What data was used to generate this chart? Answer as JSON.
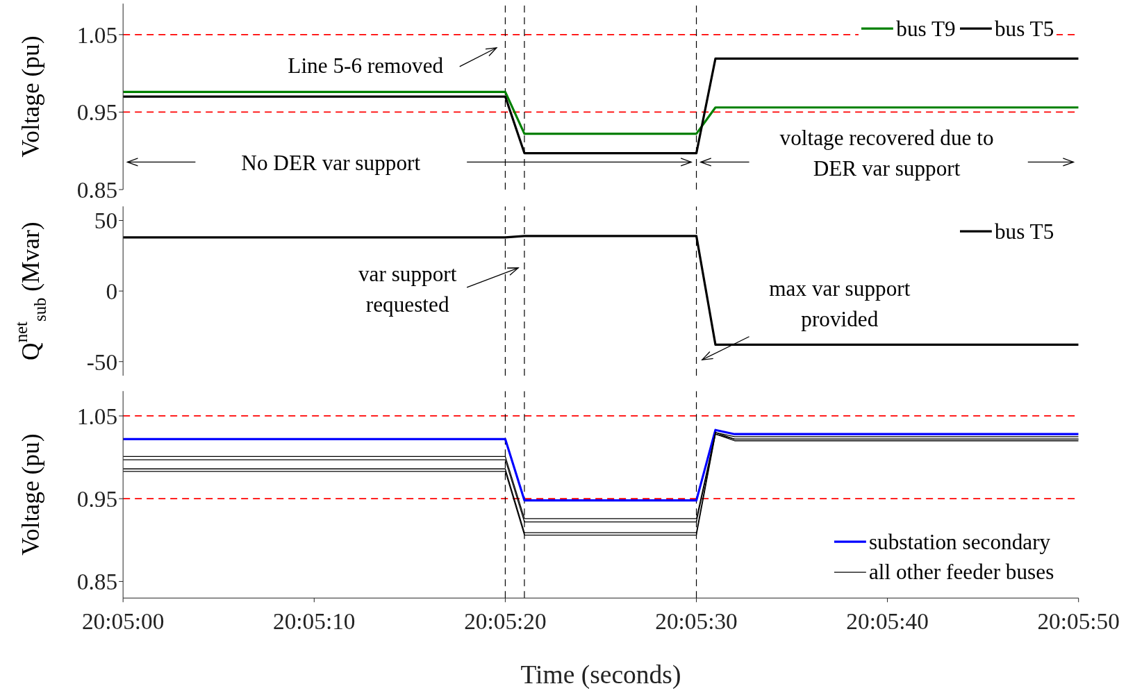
{
  "chart_data": [
    {
      "type": "line",
      "ylabel": "Voltage (pu)",
      "xlim": [
        20.083333,
        20.097222
      ],
      "xticks": [
        {
          "value": 20.083333,
          "label": null
        },
        {
          "value": 20.086111,
          "label": null
        },
        {
          "value": 20.088889,
          "label": null
        },
        {
          "value": 20.091667,
          "label": null
        },
        {
          "value": 20.094444,
          "label": null
        },
        {
          "value": 20.097222,
          "label": null
        }
      ],
      "ylim": [
        0.85,
        1.09
      ],
      "yticks": [
        0.85,
        0.95,
        1.05
      ],
      "tick_labels": "y",
      "grid": false,
      "legend": "top right",
      "marker": "none",
      "line_style": "solid",
      "series": [
        {
          "name": "bus T9",
          "color": "#008000",
          "x": [
            20.083333,
            20.088889,
            20.089167,
            20.091667,
            20.091944,
            20.097222
          ],
          "values": [
            0.976,
            0.976,
            0.922,
            0.922,
            0.956,
            0.956
          ]
        },
        {
          "name": "bus T5",
          "color": "#000000",
          "x": [
            20.083333,
            20.088889,
            20.089167,
            20.091667,
            20.091944,
            20.097222
          ],
          "values": [
            0.97,
            0.97,
            0.897,
            0.897,
            1.019,
            1.019
          ]
        }
      ],
      "ref_lines": [
        {
          "axis": "y",
          "value": 1.05,
          "color": "#ff0000",
          "line_style": "dashed"
        },
        {
          "axis": "y",
          "value": 0.95,
          "color": "#ff0000",
          "line_style": "dashed"
        },
        {
          "axis": "x",
          "value": 20.088889,
          "color": "#000000",
          "line_style": "dashed"
        },
        {
          "axis": "x",
          "value": 20.089167,
          "color": "#000000",
          "line_style": "dashed"
        },
        {
          "axis": "x",
          "value": 20.091667,
          "color": "#000000",
          "line_style": "dashed"
        }
      ],
      "annotations": [
        "Line 5-6 removed",
        "No DER var support",
        "voltage recovered due to DER var support"
      ]
    },
    {
      "type": "line",
      "ylabel": "Q$^{net}$$_{sub}$ (Mvar)",
      "xlim": [
        20.083333,
        20.097222
      ],
      "xticks": [
        {
          "value": 20.083333,
          "label": null
        },
        {
          "value": 20.086111,
          "label": null
        },
        {
          "value": 20.088889,
          "label": null
        },
        {
          "value": 20.091667,
          "label": null
        },
        {
          "value": 20.094444,
          "label": null
        },
        {
          "value": 20.097222,
          "label": null
        }
      ],
      "ylim": [
        -60,
        60
      ],
      "yticks": [
        -50,
        0,
        50
      ],
      "tick_labels": "y",
      "grid": false,
      "legend": "top right",
      "marker": "none",
      "line_style": "solid",
      "series": [
        {
          "name": "bus T5",
          "color": "#000000",
          "x": [
            20.083333,
            20.088889,
            20.089167,
            20.091667,
            20.091944,
            20.097222
          ],
          "values": [
            38,
            38,
            39,
            39,
            -38,
            -38
          ]
        }
      ],
      "ref_lines": [
        {
          "axis": "x",
          "value": 20.088889,
          "color": "#000000",
          "line_style": "dashed"
        },
        {
          "axis": "x",
          "value": 20.089167,
          "color": "#000000",
          "line_style": "dashed"
        },
        {
          "axis": "x",
          "value": 20.091667,
          "color": "#000000",
          "line_style": "dashed"
        }
      ],
      "annotations": [
        "var support requested",
        "max var support provided"
      ]
    },
    {
      "type": "line",
      "ylabel": "Voltage (pu)",
      "xlabel": "Time (seconds)",
      "xlim": [
        20.083333,
        20.097222
      ],
      "xticks": [
        {
          "value": 20.083333,
          "label": "20:05:00"
        },
        {
          "value": 20.086111,
          "label": "20:05:10"
        },
        {
          "value": 20.088889,
          "label": "20:05:20"
        },
        {
          "value": 20.091667,
          "label": "20:05:30"
        },
        {
          "value": 20.094444,
          "label": "20:05:40"
        },
        {
          "value": 20.097222,
          "label": "20:05:50"
        }
      ],
      "ylim": [
        0.83,
        1.08
      ],
      "yticks": [
        0.85,
        0.95,
        1.05
      ],
      "grid": false,
      "legend": "bottom right",
      "marker": "none",
      "line_style": "solid",
      "series": [
        {
          "name": "substation secondary",
          "color": "#0000ff",
          "x": [
            20.083333,
            20.088889,
            20.089167,
            20.091667,
            20.091944,
            20.092222,
            20.097222
          ],
          "values": [
            1.022,
            1.022,
            0.948,
            0.948,
            1.033,
            1.028,
            1.028
          ]
        },
        {
          "name": "all other feeder buses",
          "color": "#000000",
          "x": [
            20.083333,
            20.088889,
            20.089167,
            20.091667,
            20.091944,
            20.092222,
            20.097222
          ],
          "values": [
            1.001,
            1.001,
            0.926,
            0.926,
            1.03,
            1.025,
            1.025
          ]
        },
        {
          "color": "#000000",
          "x": [
            20.083333,
            20.088889,
            20.089167,
            20.091667,
            20.091944,
            20.092222,
            20.097222
          ],
          "values": [
            0.997,
            0.997,
            0.922,
            0.922,
            1.028,
            1.022,
            1.022
          ]
        },
        {
          "color": "#000000",
          "x": [
            20.083333,
            20.088889,
            20.089167,
            20.091667,
            20.091944,
            20.092222,
            20.097222
          ],
          "values": [
            0.986,
            0.986,
            0.909,
            0.909,
            1.03,
            1.022,
            1.022
          ]
        },
        {
          "color": "#000000",
          "x": [
            20.083333,
            20.088889,
            20.089167,
            20.091667,
            20.091944,
            20.092222,
            20.097222
          ],
          "values": [
            0.983,
            0.983,
            0.906,
            0.906,
            1.028,
            1.02,
            1.02
          ]
        }
      ],
      "ref_lines": [
        {
          "axis": "y",
          "value": 1.05,
          "color": "#ff0000",
          "line_style": "dashed"
        },
        {
          "axis": "y",
          "value": 0.95,
          "color": "#ff0000",
          "line_style": "dashed"
        },
        {
          "axis": "x",
          "value": 20.088889,
          "color": "#000000",
          "line_style": "dashed"
        },
        {
          "axis": "x",
          "value": 20.089167,
          "color": "#000000",
          "line_style": "dashed"
        },
        {
          "axis": "x",
          "value": 20.091667,
          "color": "#000000",
          "line_style": "dashed"
        }
      ]
    }
  ]
}
